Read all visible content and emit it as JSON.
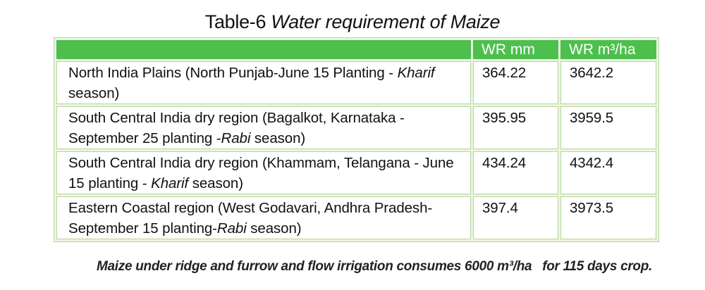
{
  "title": {
    "prefix": "Table-6 ",
    "rest": "Water requirement of Maize"
  },
  "table": {
    "headers": [
      "",
      "WR mm",
      "WR m³/ha"
    ],
    "rows": [
      {
        "region_pre": "North India Plains (North Punjab-June 15 Planting - ",
        "region_season": "Kharif",
        "region_post": " season)",
        "wr_mm": "364.22",
        "wr_m3ha": "3642.2"
      },
      {
        "region_pre": "South Central India dry region (Bagalkot, Karnataka - September 25 planting -",
        "region_season": "Rabi",
        "region_post": " season)",
        "wr_mm": "395.95",
        "wr_m3ha": "3959.5"
      },
      {
        "region_pre": "South Central India dry region (Khammam, Telangana - June 15 planting - ",
        "region_season": "Kharif",
        "region_post": " season)",
        "wr_mm": "434.24",
        "wr_m3ha": "4342.4"
      },
      {
        "region_pre": "Eastern Coastal region (West Godavari, Andhra Pradesh- September 15 planting-",
        "region_season": "Rabi",
        "region_post": " season)",
        "wr_mm": "397.4",
        "wr_m3ha": "3973.5"
      }
    ]
  },
  "footnote": "Maize under ridge and furrow and flow irrigation consumes 6000 m³/ha   for 115 days crop.",
  "colors": {
    "header_green": "#4dbf4d",
    "border_green": "#b6d79c"
  }
}
